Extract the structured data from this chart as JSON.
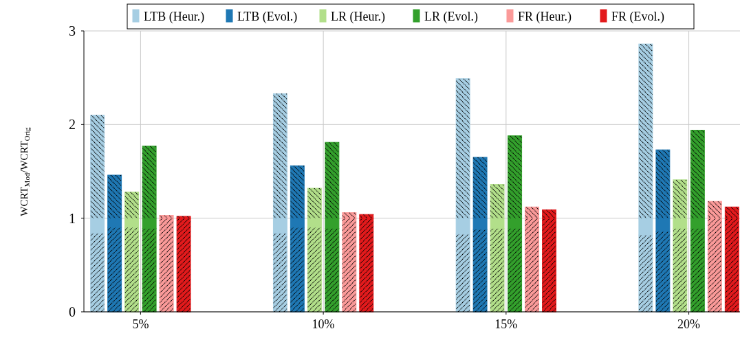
{
  "chart_data": {
    "type": "bar",
    "ylabel": "WCRT$_{Mod}$/WCRT$_{Orig}$",
    "xlim": [
      3.45,
      21.4
    ],
    "xticks": [
      {
        "value": 5,
        "label": "5%"
      },
      {
        "value": 10,
        "label": "10%"
      },
      {
        "value": 15,
        "label": "15%"
      },
      {
        "value": 20,
        "label": "20%"
      }
    ],
    "ylim": [
      0,
      3
    ],
    "yticks": [
      0,
      1,
      2,
      3
    ],
    "grid": true,
    "legend": "top",
    "series": [
      {
        "name": "LTB (Heur.)",
        "color": "#a6cee3",
        "x": [
          3.82,
          8.82,
          13.82,
          18.82
        ],
        "base": [
          0,
          0,
          0,
          0
        ],
        "values": [
          0.84,
          0.84,
          0.83,
          0.82
        ]
      },
      {
        "color": "#a6cee3",
        "x": [
          3.82,
          8.82,
          13.82,
          18.82
        ],
        "base": [
          0.84,
          0.84,
          0.83,
          0.82
        ],
        "values": [
          0.16,
          0.16,
          0.17,
          0.18
        ]
      },
      {
        "color": "#a6cee3",
        "x": [
          3.82,
          8.82,
          13.82,
          18.82
        ],
        "base": [
          1,
          1,
          1,
          1
        ],
        "values": [
          1.1,
          1.33,
          1.49,
          1.86
        ]
      },
      {
        "name": "LTB (Evol.)",
        "color": "#1f78b4",
        "x": [
          4.29,
          9.29,
          14.29,
          19.29
        ],
        "base": [
          0,
          0,
          0,
          0
        ],
        "values": [
          0.9,
          0.9,
          0.88,
          0.86
        ]
      },
      {
        "color": "#1f78b4",
        "x": [
          4.29,
          9.29,
          14.29,
          19.29
        ],
        "base": [
          0.9,
          0.9,
          0.88,
          0.86
        ],
        "values": [
          0.1,
          0.1,
          0.12,
          0.14
        ]
      },
      {
        "color": "#1f78b4",
        "x": [
          4.29,
          9.29,
          14.29,
          19.29
        ],
        "base": [
          1,
          1,
          1,
          1
        ],
        "values": [
          0.46,
          0.56,
          0.65,
          0.73
        ]
      },
      {
        "name": "LR (Heur.)",
        "color": "#b2df8a",
        "x": [
          4.76,
          9.76,
          14.76,
          19.76
        ],
        "base": [
          0,
          0,
          0,
          0
        ],
        "values": [
          0.9,
          0.9,
          0.89,
          0.89
        ]
      },
      {
        "color": "#b2df8a",
        "x": [
          4.76,
          9.76,
          14.76,
          19.76
        ],
        "base": [
          0.9,
          0.9,
          0.89,
          0.89
        ],
        "values": [
          0.1,
          0.1,
          0.11,
          0.11
        ]
      },
      {
        "color": "#b2df8a",
        "x": [
          4.76,
          9.76,
          14.76,
          19.76
        ],
        "base": [
          1,
          1,
          1,
          1
        ],
        "values": [
          0.28,
          0.32,
          0.36,
          0.41
        ]
      },
      {
        "name": "LR (Evol.)",
        "color": "#33a02c",
        "x": [
          5.24,
          10.24,
          15.24,
          20.24
        ],
        "base": [
          0,
          0,
          0,
          0
        ],
        "values": [
          0.89,
          0.89,
          0.89,
          0.89
        ]
      },
      {
        "color": "#33a02c",
        "x": [
          5.24,
          10.24,
          15.24,
          20.24
        ],
        "base": [
          0.89,
          0.89,
          0.89,
          0.89
        ],
        "values": [
          0.11,
          0.11,
          0.11,
          0.11
        ]
      },
      {
        "color": "#33a02c",
        "x": [
          5.24,
          10.24,
          15.24,
          20.24
        ],
        "base": [
          1,
          1,
          1,
          1
        ],
        "values": [
          0.77,
          0.81,
          0.88,
          0.94
        ]
      },
      {
        "name": "FR (Heur.)",
        "color": "#fb9a99",
        "x": [
          5.71,
          10.71,
          15.71,
          20.71
        ],
        "base": [
          0,
          0,
          0,
          0
        ],
        "values": [
          1,
          1,
          1,
          1
        ]
      },
      {
        "color": "#fb9a99",
        "x": [
          5.71,
          10.71,
          15.71,
          20.71
        ],
        "base": [
          1,
          1,
          1,
          1
        ],
        "values": [
          0.03,
          0.06,
          0.12,
          0.18
        ]
      },
      {
        "name": "FR (Evol.)",
        "color": "#e31a1c",
        "x": [
          6.18,
          11.18,
          16.18,
          21.18
        ],
        "base": [
          0,
          0,
          0,
          0
        ],
        "values": [
          1,
          1,
          1,
          1
        ]
      },
      {
        "color": "#e31a1c",
        "x": [
          6.18,
          11.18,
          16.18,
          21.18
        ],
        "base": [
          1,
          1,
          1,
          1
        ],
        "values": [
          0.02,
          0.04,
          0.09,
          0.12
        ]
      }
    ]
  }
}
